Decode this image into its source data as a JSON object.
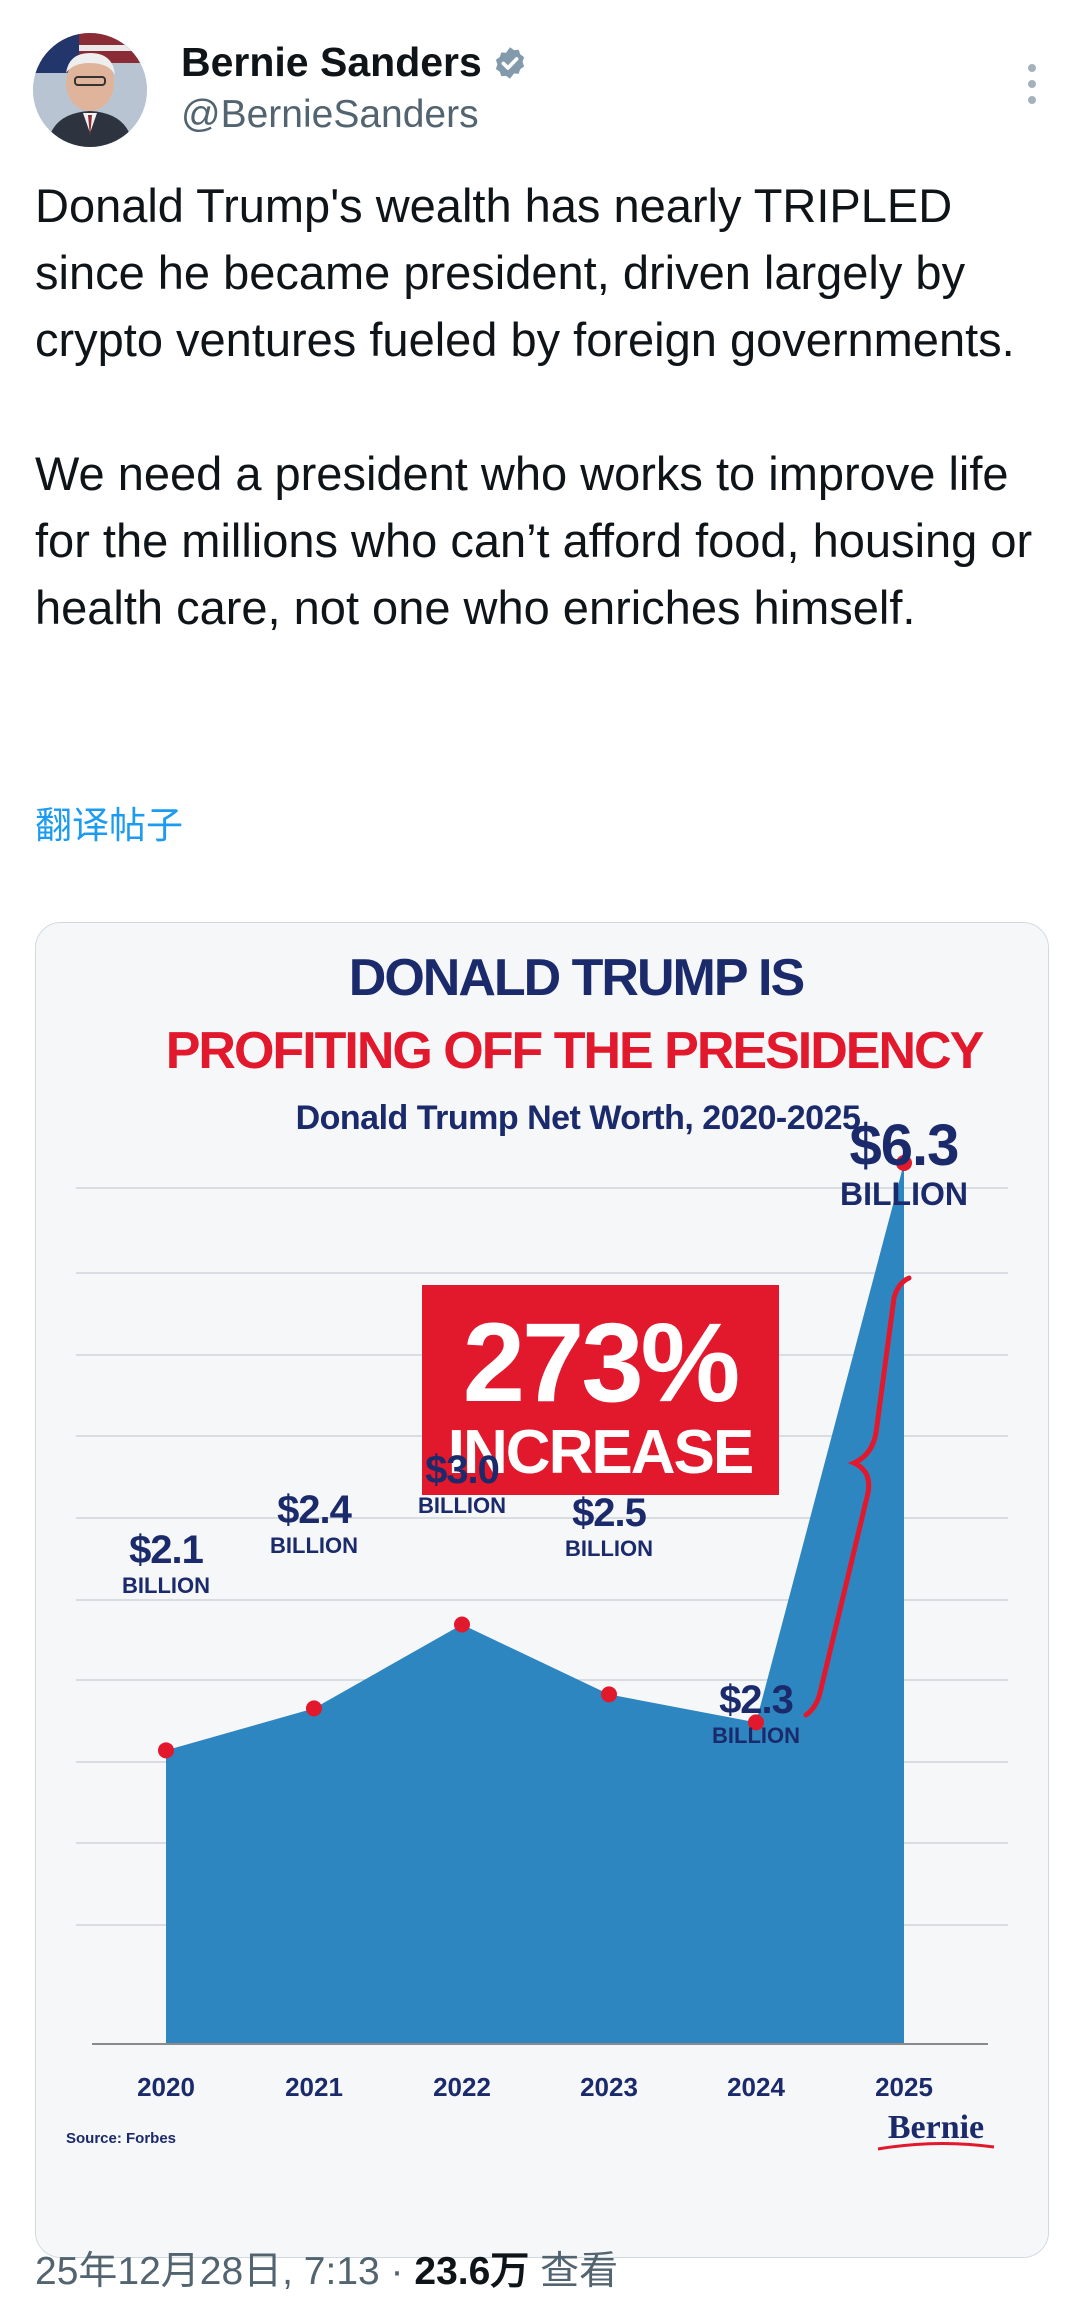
{
  "author": {
    "name": "Bernie Sanders",
    "handle": "@BernieSanders",
    "verified": true,
    "avatar_icon": "avatar-photo",
    "more_icon": "more-vertical-icon"
  },
  "tweet": {
    "text": "Donald Trump's wealth has nearly TRIPLED since he became president, driven largely by crypto ventures fueled by foreign governments.\n\nWe need a president who works to improve life for the millions who can’t afford food, housing or health care, not one who enriches himself.",
    "translate_label": "翻译帖子"
  },
  "infographic": {
    "headline_1": "DONALD TRUMP IS",
    "headline_2": "PROFITING OFF THE PRESIDENCY",
    "source": "Source: Forbes",
    "brand": "Bernie",
    "callout_1": "273%",
    "callout_2": "INCREASE",
    "colors": {
      "navy": "#1b2a6b",
      "red": "#e2182d",
      "area": "#2e86c1",
      "point": "#e2182d"
    }
  },
  "chart_data": {
    "type": "area",
    "title": "Donald Trump Net Worth, 2020-2025",
    "x": [
      "2020",
      "2021",
      "2022",
      "2023",
      "2024",
      "2025"
    ],
    "values": [
      2.1,
      2.4,
      3.0,
      2.5,
      2.3,
      6.3
    ],
    "labels": [
      {
        "amount": "$2.1",
        "unit": "BILLION"
      },
      {
        "amount": "$2.4",
        "unit": "BILLION"
      },
      {
        "amount": "$3.0",
        "unit": "BILLION"
      },
      {
        "amount": "$2.5",
        "unit": "BILLION"
      },
      {
        "amount": "$2.3",
        "unit": "BILLION"
      },
      {
        "amount": "$6.3",
        "unit": "BILLION"
      }
    ],
    "grid": true,
    "ylim": [
      0,
      6.3
    ]
  },
  "footer": {
    "timestamp": "25年12月28日, 7:13 · ",
    "views": "23.6万",
    "views_label": " 查看"
  }
}
